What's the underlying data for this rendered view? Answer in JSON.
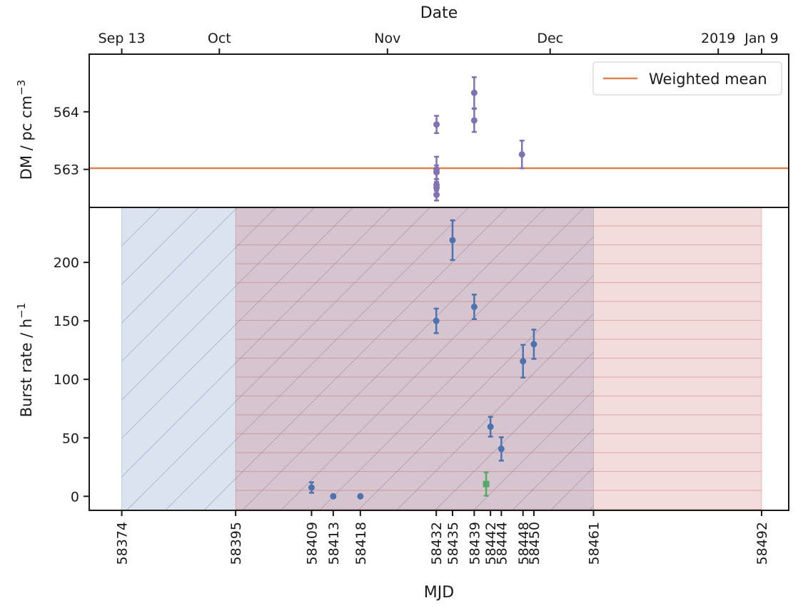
{
  "chart_data": [
    {
      "type": "scatter",
      "panel": "top",
      "ylabel": "DM / pc cm",
      "ylabel_superscript": "−3",
      "xlabel_top": "Date",
      "date_ticks": [
        {
          "mjd": 58374,
          "label": "Sep 13"
        },
        {
          "mjd": 58392,
          "label": "Oct"
        },
        {
          "mjd": 58423,
          "label": "Nov"
        },
        {
          "mjd": 58453,
          "label": "Dec"
        },
        {
          "mjd": 58484,
          "label": "2019"
        },
        {
          "mjd": 58492,
          "label": "Jan 9"
        }
      ],
      "yticks": [
        563,
        564
      ],
      "ylim": [
        562.34,
        565.0
      ],
      "xlim": [
        58368,
        58497
      ],
      "legend": {
        "entry": "Weighted mean",
        "color": "#dd8452",
        "position": "top-right"
      },
      "weighted_mean": 563.02,
      "series": [
        {
          "color": "#8172b3",
          "points": [
            {
              "mjd": 58432.05,
              "y": 563.78,
              "err": 0.15
            },
            {
              "mjd": 58432.05,
              "y": 563.0,
              "err": 0.22
            },
            {
              "mjd": 58432.05,
              "y": 562.95,
              "err": 0.12
            },
            {
              "mjd": 58432.05,
              "y": 562.73,
              "err": 0.1
            },
            {
              "mjd": 58432.05,
              "y": 562.68,
              "err": 0.1
            },
            {
              "mjd": 58432.05,
              "y": 562.56,
              "err": 0.1
            },
            {
              "mjd": 58439.0,
              "y": 564.33,
              "err": 0.27
            },
            {
              "mjd": 58439.0,
              "y": 563.85,
              "err": 0.2
            },
            {
              "mjd": 58447.8,
              "y": 563.26,
              "err": 0.24
            }
          ]
        }
      ]
    },
    {
      "type": "scatter",
      "panel": "bottom",
      "xlabel": "MJD",
      "ylabel": "Burst rate / h",
      "ylabel_superscript": "−1",
      "xlim": [
        58368,
        58497
      ],
      "ylim": [
        -12,
        247
      ],
      "yticks": [
        0,
        50,
        100,
        150,
        200
      ],
      "xticks": [
        58374,
        58395,
        58409,
        58413,
        58418,
        58432,
        58435,
        58439,
        58442,
        58444,
        58448,
        58450,
        58461,
        58492
      ],
      "regions": [
        {
          "from": 58374,
          "to": 58461,
          "color": "#4c72b0",
          "hatch": "diagonal"
        },
        {
          "from": 58395,
          "to": 58492,
          "color": "#c44e52",
          "hatch": "horizontal"
        }
      ],
      "series": [
        {
          "color": "#4c72b0",
          "marker": "circle",
          "points": [
            {
              "mjd": 58409.0,
              "y": 7.5,
              "err": 4.5
            },
            {
              "mjd": 58413.0,
              "y": 0.0,
              "err": 0
            },
            {
              "mjd": 58418.0,
              "y": 0.0,
              "err": 0
            },
            {
              "mjd": 58432.0,
              "y": 150,
              "err": 10.5
            },
            {
              "mjd": 58435.0,
              "y": 219,
              "err": 17
            },
            {
              "mjd": 58439.0,
              "y": 162,
              "err": 10.5
            },
            {
              "mjd": 58442.0,
              "y": 59.5,
              "err": 8.5
            },
            {
              "mjd": 58444.0,
              "y": 40.5,
              "err": 10
            },
            {
              "mjd": 58448.0,
              "y": 115.5,
              "err": 14
            },
            {
              "mjd": 58450.0,
              "y": 130,
              "err": 12.5
            }
          ]
        },
        {
          "color": "#55a868",
          "marker": "square",
          "points": [
            {
              "mjd": 58441.2,
              "y": 10.5,
              "err": 10
            }
          ]
        }
      ]
    }
  ]
}
